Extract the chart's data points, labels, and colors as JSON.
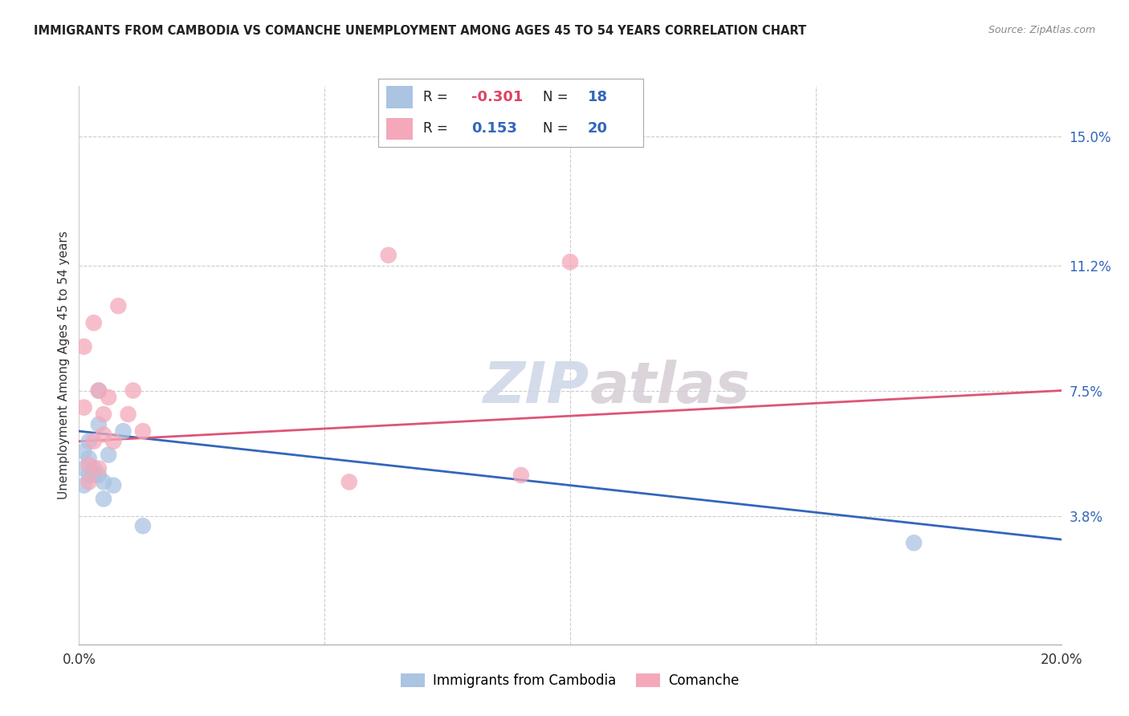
{
  "title": "IMMIGRANTS FROM CAMBODIA VS COMANCHE UNEMPLOYMENT AMONG AGES 45 TO 54 YEARS CORRELATION CHART",
  "source": "Source: ZipAtlas.com",
  "ylabel": "Unemployment Among Ages 45 to 54 years",
  "xlim": [
    0.0,
    0.2
  ],
  "ylim": [
    0.0,
    0.165
  ],
  "ytick_labels_right": [
    "15.0%",
    "11.2%",
    "7.5%",
    "3.8%"
  ],
  "ytick_values_right": [
    0.15,
    0.112,
    0.075,
    0.038
  ],
  "watermark_zip": "ZIP",
  "watermark_atlas": "atlas",
  "blue_color": "#aac4e2",
  "pink_color": "#f4a8ba",
  "blue_line_color": "#3366bb",
  "pink_line_color": "#dd5577",
  "legend_R_blue": "-0.301",
  "legend_N_blue": "18",
  "legend_R_pink": "0.153",
  "legend_N_pink": "20",
  "blue_points_x": [
    0.001,
    0.001,
    0.001,
    0.002,
    0.002,
    0.002,
    0.003,
    0.003,
    0.004,
    0.004,
    0.004,
    0.005,
    0.005,
    0.006,
    0.007,
    0.009,
    0.013,
    0.17
  ],
  "blue_points_y": [
    0.057,
    0.052,
    0.047,
    0.06,
    0.055,
    0.05,
    0.052,
    0.05,
    0.075,
    0.065,
    0.05,
    0.048,
    0.043,
    0.056,
    0.047,
    0.063,
    0.035,
    0.03
  ],
  "pink_points_x": [
    0.001,
    0.001,
    0.002,
    0.002,
    0.003,
    0.003,
    0.004,
    0.004,
    0.005,
    0.005,
    0.006,
    0.007,
    0.008,
    0.01,
    0.011,
    0.013,
    0.055,
    0.063,
    0.09,
    0.1
  ],
  "pink_points_y": [
    0.088,
    0.07,
    0.053,
    0.048,
    0.095,
    0.06,
    0.075,
    0.052,
    0.068,
    0.062,
    0.073,
    0.06,
    0.1,
    0.068,
    0.075,
    0.063,
    0.048,
    0.115,
    0.05,
    0.113
  ],
  "blue_trend_x": [
    0.0,
    0.2
  ],
  "blue_trend_y": [
    0.063,
    0.031
  ],
  "pink_trend_x": [
    0.0,
    0.2
  ],
  "pink_trend_y": [
    0.06,
    0.075
  ]
}
